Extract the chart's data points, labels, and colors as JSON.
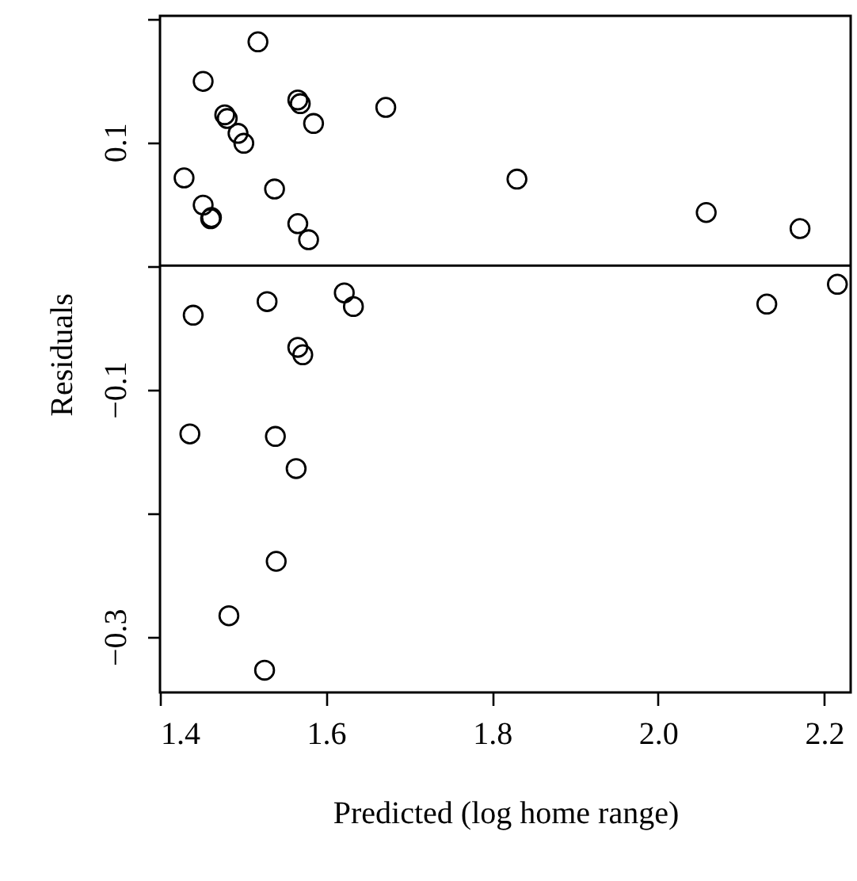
{
  "chart_data": {
    "type": "scatter",
    "xlabel": "Predicted (log home range)",
    "ylabel": "Residuals",
    "xlim": [
      1.4,
      2.232
    ],
    "xticks": [
      1.4,
      1.6,
      1.8,
      {
        "value": 2,
        "label": "2.0"
      },
      2.2
    ],
    "ylim": [
      -0.345,
      0.202
    ],
    "yticks": [
      {
        "value": -0.3,
        "label": "−0.3"
      },
      {
        "value": -0.2,
        "label": null
      },
      {
        "value": -0.1,
        "label": "−0.1"
      },
      {
        "value": 0,
        "label": null
      },
      {
        "value": 0.1,
        "label": "0.1"
      },
      {
        "value": 0.2,
        "label": null
      }
    ],
    "marker": "circle",
    "ref_lines": [
      {
        "axis": "y",
        "value": 0
      }
    ],
    "series": [
      {
        "color": "#000000",
        "x": [
          1.518,
          1.452,
          1.566,
          1.569,
          1.585,
          1.672,
          1.478,
          1.481,
          1.494,
          1.501,
          1.429,
          1.452,
          1.462,
          1.461,
          1.538,
          1.566,
          1.579,
          1.83,
          2.058,
          2.171,
          2.216,
          2.131,
          1.622,
          1.633,
          1.44,
          1.529,
          1.566,
          1.572,
          1.436,
          1.539,
          1.564,
          1.54,
          1.483,
          1.526
        ],
        "values": [
          0.181,
          0.149,
          0.134,
          0.131,
          0.115,
          0.128,
          0.122,
          0.119,
          0.107,
          0.099,
          0.071,
          0.049,
          0.039,
          0.038,
          0.062,
          0.034,
          0.021,
          0.07,
          0.043,
          0.03,
          -0.015,
          -0.031,
          -0.022,
          -0.033,
          -0.04,
          -0.029,
          -0.066,
          -0.072,
          -0.136,
          -0.138,
          -0.164,
          -0.239,
          -0.283,
          -0.327
        ]
      }
    ]
  }
}
